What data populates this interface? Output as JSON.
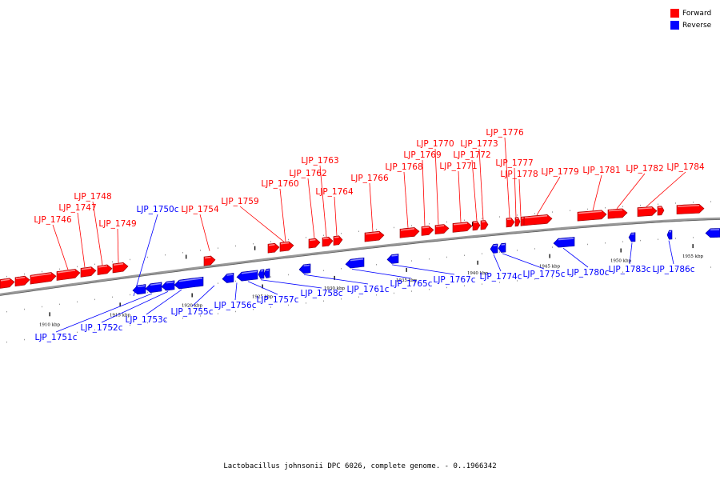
{
  "caption": "Lactobacillus johnsonii DPC 6026, complete genome. - 0..1966342",
  "legend": [
    {
      "label": "Forward",
      "color": "#ff0000"
    },
    {
      "label": "Reverse",
      "color": "#0000ff"
    }
  ],
  "colors": {
    "forward": "#ff0000",
    "reverse": "#0000ff",
    "backbone": "#808080"
  },
  "ticks": [
    "1910 kbp",
    "1915 kbp",
    "1920 kbp",
    "1925 kbp",
    "1930 kbp",
    "1935 kbp",
    "1940 kbp",
    "1945 kbp",
    "1950 kbp",
    "1955 kbp"
  ],
  "genes_forward": [
    "LJP_1746",
    "LJP_1747",
    "LJP_1748",
    "LJP_1749",
    "LJP_1754",
    "LJP_1759",
    "LJP_1760",
    "LJP_1762",
    "LJP_1763",
    "LJP_1764",
    "LJP_1766",
    "LJP_1768",
    "LJP_1769",
    "LJP_1770",
    "LJP_1771",
    "LJP_1772",
    "LJP_1773",
    "LJP_1776",
    "LJP_1777",
    "LJP_1778",
    "LJP_1779",
    "LJP_1781",
    "LJP_1782",
    "LJP_1784"
  ],
  "genes_reverse": [
    "LJP_1750c",
    "LJP_1751c",
    "LJP_1752c",
    "LJP_1753c",
    "LJP_1755c",
    "LJP_1756c",
    "LJP_1757c",
    "LJP_1758c",
    "LJP_1761c",
    "LJP_1765c",
    "LJP_1767c",
    "LJP_1774c",
    "LJP_1775c",
    "LJP_1780c",
    "LJP_1783c",
    "LJP_1786c"
  ]
}
